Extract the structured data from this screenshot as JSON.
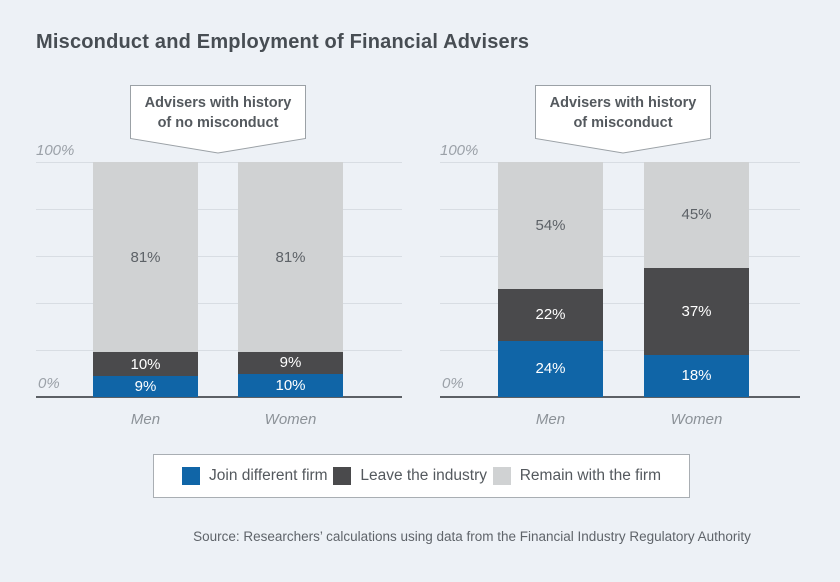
{
  "title": "Misconduct and Employment of Financial Advisers",
  "chart_data": [
    {
      "type": "bar",
      "stacked": true,
      "callout_lines": [
        "Advisers with history",
        "of no misconduct"
      ],
      "categories": [
        "Men",
        "Women"
      ],
      "series": [
        {
          "name": "Join different firm",
          "values": [
            9,
            10
          ],
          "color": "#1065a7",
          "label_color": "#ffffff"
        },
        {
          "name": "Leave the industry",
          "values": [
            10,
            9
          ],
          "color": "#4a4a4c",
          "label_color": "#ffffff"
        },
        {
          "name": "Remain with the firm",
          "values": [
            81,
            81
          ],
          "color": "#d0d2d3",
          "label_color": "#5d6267"
        }
      ],
      "ylim": [
        0,
        100
      ],
      "ytick_top": "100%",
      "ytick_bottom": "0%",
      "grid_interval_pct": 20,
      "value_suffix": "%"
    },
    {
      "type": "bar",
      "stacked": true,
      "callout_lines": [
        "Advisers with history",
        "of misconduct"
      ],
      "categories": [
        "Men",
        "Women"
      ],
      "series": [
        {
          "name": "Join different firm",
          "values": [
            24,
            18
          ],
          "color": "#1065a7",
          "label_color": "#ffffff"
        },
        {
          "name": "Leave the industry",
          "values": [
            22,
            37
          ],
          "color": "#4a4a4c",
          "label_color": "#ffffff"
        },
        {
          "name": "Remain with the firm",
          "values": [
            54,
            45
          ],
          "color": "#d0d2d3",
          "label_color": "#5d6267"
        }
      ],
      "ylim": [
        0,
        100
      ],
      "ytick_top": "100%",
      "ytick_bottom": "0%",
      "grid_interval_pct": 20,
      "value_suffix": "%"
    }
  ],
  "legend": {
    "items": [
      {
        "label": "Join different firm",
        "color": "#1065a7"
      },
      {
        "label": "Leave the industry",
        "color": "#4a4a4c"
      },
      {
        "label": "Remain with the firm",
        "color": "#d0d2d3"
      }
    ]
  },
  "source": "Source: Researchers’ calculations using data from the Financial Industry Regulatory Authority",
  "colors": {
    "background": "#edf1f6",
    "gridline": "#d8dde3",
    "baseline": "#5c6065",
    "accent_blue": "#1065a7"
  }
}
